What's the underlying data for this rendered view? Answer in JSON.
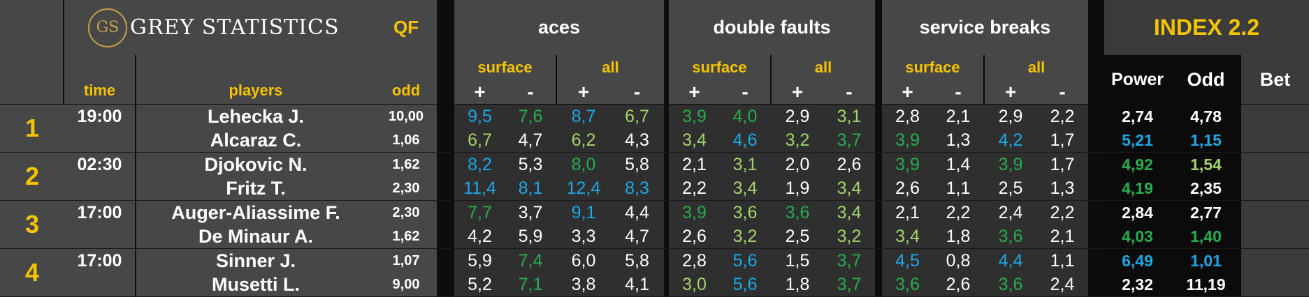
{
  "header": {
    "logo_initials": "GS",
    "logo_text": "GREY STATISTICS",
    "round": "QF",
    "groups": [
      "aces",
      "double faults",
      "service breaks"
    ],
    "index_title": "INDEX 2.2",
    "surface_label": "surface",
    "all_label": "all",
    "plus": "+",
    "minus": "-",
    "time_label": "time",
    "players_label": "players",
    "odd_label": "odd",
    "power_label": "Power",
    "index_odd_label": "Odd",
    "bet_label": "Bet"
  },
  "colors": {
    "gold": "#f5c400",
    "blue": "#1ea8e6",
    "dark_green": "#27ae4f",
    "light_green": "#a2d36b",
    "white": "#ffffff"
  },
  "matches": [
    {
      "num": "1",
      "time": "19:00",
      "players": [
        {
          "name": "Lehecka J.",
          "odd": "10,00",
          "stats": [
            [
              "9,5",
              "b"
            ],
            [
              "7,6",
              "dg"
            ],
            [
              "8,7",
              "b"
            ],
            [
              "6,7",
              "lg"
            ],
            [
              "3,9",
              "dg"
            ],
            [
              "4,0",
              "dg"
            ],
            [
              "2,9",
              "w"
            ],
            [
              "3,1",
              "lg"
            ],
            [
              "2,8",
              "w"
            ],
            [
              "2,1",
              "w"
            ],
            [
              "2,9",
              "w"
            ],
            [
              "2,2",
              "w"
            ]
          ],
          "power": [
            "2,74",
            "w"
          ],
          "index_odd": [
            "4,78",
            "w"
          ]
        },
        {
          "name": "Alcaraz C.",
          "odd": "1,06",
          "stats": [
            [
              "6,7",
              "lg"
            ],
            [
              "4,7",
              "w"
            ],
            [
              "6,2",
              "lg"
            ],
            [
              "4,3",
              "w"
            ],
            [
              "3,4",
              "lg"
            ],
            [
              "4,6",
              "b"
            ],
            [
              "3,2",
              "lg"
            ],
            [
              "3,7",
              "dg"
            ],
            [
              "3,9",
              "dg"
            ],
            [
              "1,3",
              "w"
            ],
            [
              "4,2",
              "b"
            ],
            [
              "1,7",
              "w"
            ]
          ],
          "power": [
            "5,21",
            "b"
          ],
          "index_odd": [
            "1,15",
            "b"
          ]
        }
      ]
    },
    {
      "num": "2",
      "time": "02:30",
      "players": [
        {
          "name": "Djokovic N.",
          "odd": "1,62",
          "stats": [
            [
              "8,2",
              "b"
            ],
            [
              "5,3",
              "w"
            ],
            [
              "8,0",
              "dg"
            ],
            [
              "5,8",
              "w"
            ],
            [
              "2,1",
              "w"
            ],
            [
              "3,1",
              "lg"
            ],
            [
              "2,0",
              "w"
            ],
            [
              "2,6",
              "w"
            ],
            [
              "3,9",
              "dg"
            ],
            [
              "1,4",
              "w"
            ],
            [
              "3,9",
              "dg"
            ],
            [
              "1,7",
              "w"
            ]
          ],
          "power": [
            "4,92",
            "dg"
          ],
          "index_odd": [
            "1,54",
            "lg"
          ]
        },
        {
          "name": "Fritz T.",
          "odd": "2,30",
          "stats": [
            [
              "11,4",
              "b"
            ],
            [
              "8,1",
              "b"
            ],
            [
              "12,4",
              "b"
            ],
            [
              "8,3",
              "b"
            ],
            [
              "2,2",
              "w"
            ],
            [
              "3,4",
              "lg"
            ],
            [
              "1,9",
              "w"
            ],
            [
              "3,4",
              "lg"
            ],
            [
              "2,6",
              "w"
            ],
            [
              "1,1",
              "w"
            ],
            [
              "2,5",
              "w"
            ],
            [
              "1,3",
              "w"
            ]
          ],
          "power": [
            "4,19",
            "dg"
          ],
          "index_odd": [
            "2,35",
            "w"
          ]
        }
      ]
    },
    {
      "num": "3",
      "time": "17:00",
      "players": [
        {
          "name": "Auger-Aliassime F.",
          "odd": "2,30",
          "stats": [
            [
              "7,7",
              "dg"
            ],
            [
              "3,7",
              "w"
            ],
            [
              "9,1",
              "b"
            ],
            [
              "4,4",
              "w"
            ],
            [
              "3,9",
              "dg"
            ],
            [
              "3,6",
              "lg"
            ],
            [
              "3,6",
              "dg"
            ],
            [
              "3,4",
              "lg"
            ],
            [
              "2,1",
              "w"
            ],
            [
              "2,2",
              "w"
            ],
            [
              "2,4",
              "w"
            ],
            [
              "2,2",
              "w"
            ]
          ],
          "power": [
            "2,84",
            "w"
          ],
          "index_odd": [
            "2,77",
            "w"
          ]
        },
        {
          "name": "De Minaur A.",
          "odd": "1,62",
          "stats": [
            [
              "4,2",
              "w"
            ],
            [
              "5,9",
              "w"
            ],
            [
              "3,3",
              "w"
            ],
            [
              "4,7",
              "w"
            ],
            [
              "2,6",
              "w"
            ],
            [
              "3,2",
              "lg"
            ],
            [
              "2,5",
              "w"
            ],
            [
              "3,2",
              "lg"
            ],
            [
              "3,4",
              "lg"
            ],
            [
              "1,8",
              "w"
            ],
            [
              "3,6",
              "dg"
            ],
            [
              "2,1",
              "w"
            ]
          ],
          "power": [
            "4,03",
            "dg"
          ],
          "index_odd": [
            "1,40",
            "dg"
          ]
        }
      ]
    },
    {
      "num": "4",
      "time": "17:00",
      "players": [
        {
          "name": "Sinner J.",
          "odd": "1,07",
          "stats": [
            [
              "5,9",
              "w"
            ],
            [
              "7,4",
              "dg"
            ],
            [
              "6,0",
              "w"
            ],
            [
              "5,8",
              "w"
            ],
            [
              "2,8",
              "w"
            ],
            [
              "5,6",
              "b"
            ],
            [
              "1,5",
              "w"
            ],
            [
              "3,7",
              "dg"
            ],
            [
              "4,5",
              "b"
            ],
            [
              "0,8",
              "w"
            ],
            [
              "4,4",
              "b"
            ],
            [
              "1,1",
              "w"
            ]
          ],
          "power": [
            "6,49",
            "b"
          ],
          "index_odd": [
            "1,01",
            "b"
          ]
        },
        {
          "name": "Musetti L.",
          "odd": "9,00",
          "stats": [
            [
              "5,2",
              "w"
            ],
            [
              "7,1",
              "dg"
            ],
            [
              "3,8",
              "w"
            ],
            [
              "4,1",
              "w"
            ],
            [
              "3,0",
              "lg"
            ],
            [
              "5,6",
              "b"
            ],
            [
              "1,8",
              "w"
            ],
            [
              "3,7",
              "dg"
            ],
            [
              "3,6",
              "dg"
            ],
            [
              "2,6",
              "w"
            ],
            [
              "3,6",
              "dg"
            ],
            [
              "2,4",
              "w"
            ]
          ],
          "power": [
            "2,32",
            "w"
          ],
          "index_odd": [
            "11,19",
            "w"
          ]
        }
      ]
    }
  ]
}
